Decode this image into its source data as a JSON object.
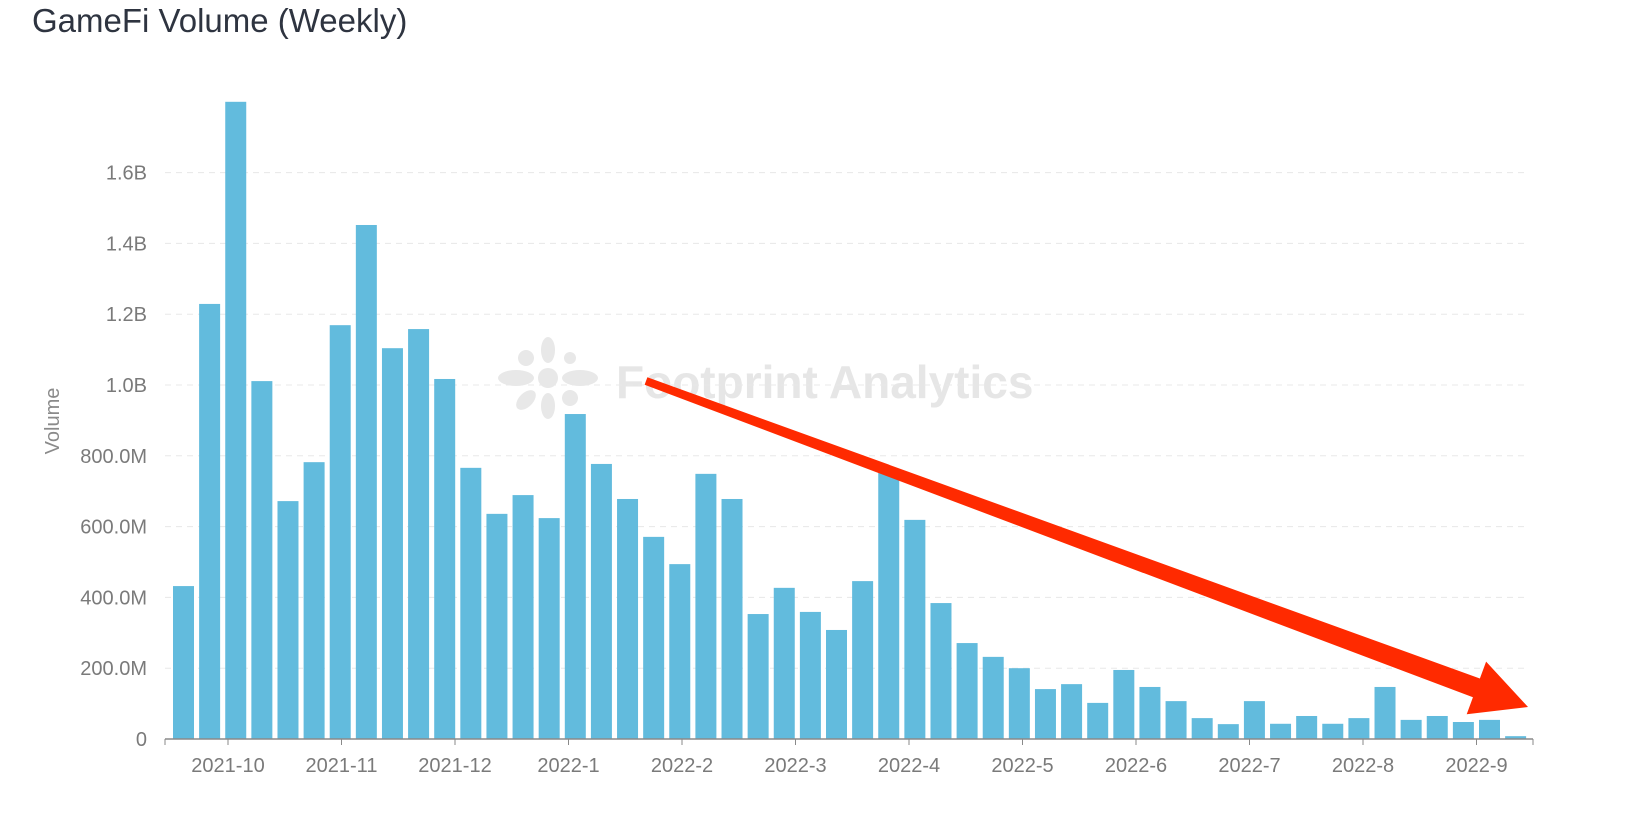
{
  "chart_data": {
    "type": "bar",
    "title": "GameFi Volume (Weekly)",
    "xlabel": "",
    "ylabel": "Volume",
    "ylim": [
      0,
      1800000000
    ],
    "yticks": [
      0,
      200000000,
      400000000,
      600000000,
      800000000,
      1000000000,
      1200000000,
      1400000000,
      1600000000
    ],
    "ytick_labels": [
      "0",
      "200.0M",
      "400.0M",
      "600.0M",
      "800.0M",
      "1.0B",
      "1.2B",
      "1.4B",
      "1.6B"
    ],
    "xtick_labels": [
      "2021-10",
      "2021-11",
      "2021-12",
      "2022-1",
      "2022-2",
      "2022-3",
      "2022-4",
      "2022-5",
      "2022-6",
      "2022-7",
      "2022-8",
      "2022-9"
    ],
    "grid": true,
    "bar_color": "#62bbdd",
    "values": [
      432000000,
      1229000000,
      1800000000,
      1011000000,
      672000000,
      782000000,
      1169000000,
      1452000000,
      1104000000,
      1158000000,
      1017000000,
      766000000,
      636000000,
      689000000,
      624000000,
      918000000,
      777000000,
      678000000,
      571000000,
      494000000,
      749000000,
      678000000,
      353000000,
      427000000,
      359000000,
      308000000,
      446000000,
      760000000,
      619000000,
      384000000,
      271000000,
      232000000,
      200000000,
      141000000,
      155000000,
      102000000,
      195000000,
      147000000,
      107000000,
      59000000,
      42000000,
      107000000,
      43000000,
      65000000,
      43000000,
      59000000,
      147000000,
      54000000,
      65000000,
      48000000,
      54000000,
      8000000
    ],
    "annotation": {
      "type": "arrow",
      "color": "#ff2a00",
      "direction": "downward trend"
    }
  },
  "watermark": "Footprint Analytics"
}
